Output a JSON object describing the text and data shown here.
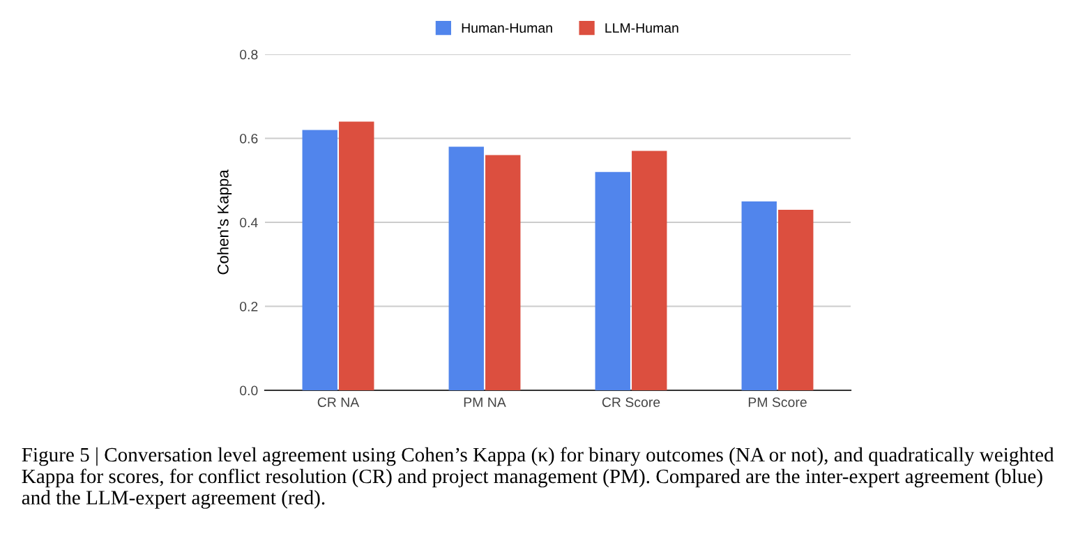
{
  "chart_data": {
    "type": "bar",
    "ylabel": "Cohen's Kappa",
    "categories": [
      "CR NA",
      "PM NA",
      "CR Score",
      "PM Score"
    ],
    "series": [
      {
        "name": "Human-Human",
        "color": "#5185ec",
        "values": [
          0.62,
          0.58,
          0.52,
          0.45
        ]
      },
      {
        "name": "LLM-Human",
        "color": "#dc4f3f",
        "values": [
          0.64,
          0.56,
          0.57,
          0.43
        ]
      }
    ],
    "ylim": [
      0,
      0.8
    ],
    "yticks": [
      {
        "value": 0,
        "label": "0.0"
      },
      {
        "value": 0.2,
        "label": "0.2"
      },
      {
        "value": 0.4,
        "label": "0.4"
      },
      {
        "value": 0.6,
        "label": "0.6"
      },
      {
        "value": 0.8,
        "label": "0.8"
      }
    ],
    "grid": "y",
    "legend": "top",
    "annotations": [
      "Figure 5 | Conversation level agreement using Cohen’s Kappa (κ) for binary outcomes (NA or not), and quadratically weighted Kappa for scores, for conflict resolution (CR) and project management (PM). Compared are the inter-expert agreement (blue) and the LLM-expert agreement (red)."
    ]
  }
}
